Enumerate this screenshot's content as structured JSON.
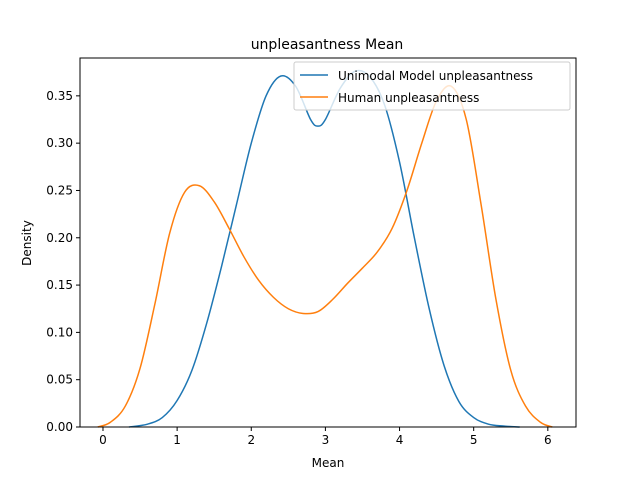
{
  "chart_data": {
    "type": "line",
    "title": "unpleasantness Mean",
    "xlabel": "Mean",
    "ylabel": "Density",
    "xlim": [
      -0.31,
      6.38
    ],
    "ylim": [
      0.0,
      0.39
    ],
    "xticks": [
      0,
      1,
      2,
      3,
      4,
      5,
      6
    ],
    "xtick_labels": [
      "0",
      "1",
      "2",
      "3",
      "4",
      "5",
      "6"
    ],
    "yticks": [
      0.0,
      0.05,
      0.1,
      0.15,
      0.2,
      0.25,
      0.3,
      0.35
    ],
    "ytick_labels": [
      "0.00",
      "0.05",
      "0.10",
      "0.15",
      "0.20",
      "0.25",
      "0.30",
      "0.35"
    ],
    "grid": false,
    "legend_position": "top-right",
    "series": [
      {
        "name": "Unimodal Model unpleasantness",
        "color": "#1f77b4",
        "x": [
          0.35,
          0.6,
          0.8,
          1.0,
          1.2,
          1.4,
          1.6,
          1.8,
          2.0,
          2.2,
          2.4,
          2.6,
          2.8,
          2.9,
          3.0,
          3.2,
          3.4,
          3.6,
          3.8,
          4.0,
          4.2,
          4.4,
          4.6,
          4.8,
          5.0,
          5.2,
          5.4,
          5.62
        ],
        "y": [
          0.0,
          0.003,
          0.01,
          0.028,
          0.06,
          0.11,
          0.17,
          0.235,
          0.3,
          0.35,
          0.371,
          0.36,
          0.325,
          0.318,
          0.325,
          0.358,
          0.376,
          0.37,
          0.34,
          0.28,
          0.2,
          0.125,
          0.065,
          0.027,
          0.01,
          0.003,
          0.001,
          0.0
        ]
      },
      {
        "name": "Human unpleasantness",
        "color": "#ff7f0e",
        "x": [
          -0.07,
          0.1,
          0.3,
          0.5,
          0.7,
          0.9,
          1.1,
          1.3,
          1.5,
          1.7,
          1.9,
          2.1,
          2.3,
          2.5,
          2.7,
          2.9,
          3.1,
          3.3,
          3.5,
          3.7,
          3.9,
          4.1,
          4.3,
          4.5,
          4.7,
          4.9,
          5.1,
          5.3,
          5.5,
          5.7,
          5.9,
          6.06
        ],
        "y": [
          0.0,
          0.005,
          0.022,
          0.062,
          0.13,
          0.205,
          0.248,
          0.255,
          0.238,
          0.21,
          0.18,
          0.155,
          0.137,
          0.125,
          0.12,
          0.122,
          0.135,
          0.152,
          0.168,
          0.185,
          0.21,
          0.25,
          0.3,
          0.345,
          0.36,
          0.325,
          0.235,
          0.135,
          0.06,
          0.022,
          0.005,
          0.0
        ]
      }
    ]
  }
}
